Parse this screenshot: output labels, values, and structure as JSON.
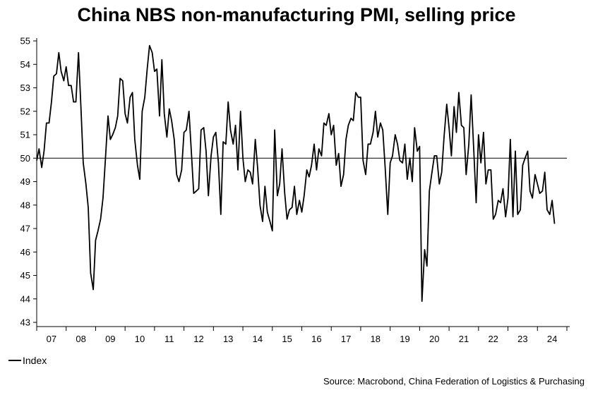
{
  "chart_data": {
    "type": "line",
    "title": "China NBS non-manufacturing PMI, selling price",
    "xlabel": "",
    "ylabel": "",
    "ylim": [
      43,
      55
    ],
    "xlim": [
      2007.0,
      2025.0
    ],
    "yticks": [
      43,
      44,
      45,
      46,
      47,
      48,
      49,
      50,
      51,
      52,
      53,
      54,
      55
    ],
    "categories": [
      "07",
      "08",
      "09",
      "10",
      "11",
      "12",
      "13",
      "14",
      "15",
      "16",
      "17",
      "18",
      "19",
      "20",
      "21",
      "22",
      "23",
      "24"
    ],
    "reference_line": 50,
    "grid": false,
    "legend": "bottom-left",
    "series": [
      {
        "name": "Index",
        "color": "#000000",
        "x": [
          2007.0,
          2007.08,
          2007.17,
          2007.25,
          2007.33,
          2007.42,
          2007.5,
          2007.58,
          2007.67,
          2007.75,
          2007.83,
          2007.92,
          2008.0,
          2008.08,
          2008.17,
          2008.25,
          2008.33,
          2008.42,
          2008.5,
          2008.58,
          2008.67,
          2008.75,
          2008.83,
          2008.92,
          2009.0,
          2009.08,
          2009.17,
          2009.25,
          2009.33,
          2009.42,
          2009.5,
          2009.58,
          2009.67,
          2009.75,
          2009.83,
          2009.92,
          2010.0,
          2010.08,
          2010.17,
          2010.25,
          2010.33,
          2010.42,
          2010.5,
          2010.58,
          2010.67,
          2010.75,
          2010.83,
          2010.92,
          2011.0,
          2011.08,
          2011.17,
          2011.25,
          2011.33,
          2011.42,
          2011.5,
          2011.58,
          2011.67,
          2011.75,
          2011.83,
          2011.92,
          2012.0,
          2012.08,
          2012.17,
          2012.25,
          2012.33,
          2012.42,
          2012.5,
          2012.58,
          2012.67,
          2012.75,
          2012.83,
          2012.92,
          2013.0,
          2013.08,
          2013.17,
          2013.25,
          2013.33,
          2013.42,
          2013.5,
          2013.58,
          2013.67,
          2013.75,
          2013.83,
          2013.92,
          2014.0,
          2014.08,
          2014.17,
          2014.25,
          2014.33,
          2014.42,
          2014.5,
          2014.58,
          2014.67,
          2014.75,
          2014.83,
          2014.92,
          2015.0,
          2015.08,
          2015.17,
          2015.25,
          2015.33,
          2015.42,
          2015.5,
          2015.58,
          2015.67,
          2015.75,
          2015.83,
          2015.92,
          2016.0,
          2016.08,
          2016.17,
          2016.25,
          2016.33,
          2016.42,
          2016.5,
          2016.58,
          2016.67,
          2016.75,
          2016.83,
          2016.92,
          2017.0,
          2017.08,
          2017.17,
          2017.25,
          2017.33,
          2017.42,
          2017.5,
          2017.58,
          2017.67,
          2017.75,
          2017.83,
          2017.92,
          2018.0,
          2018.08,
          2018.17,
          2018.25,
          2018.33,
          2018.42,
          2018.5,
          2018.58,
          2018.67,
          2018.75,
          2018.83,
          2018.92,
          2019.0,
          2019.08,
          2019.17,
          2019.25,
          2019.33,
          2019.42,
          2019.5,
          2019.58,
          2019.67,
          2019.75,
          2019.83,
          2019.92,
          2020.0,
          2020.08,
          2020.17,
          2020.25,
          2020.33,
          2020.42,
          2020.5,
          2020.58,
          2020.67,
          2020.75,
          2020.83,
          2020.92,
          2021.0,
          2021.08,
          2021.17,
          2021.25,
          2021.33,
          2021.42,
          2021.5,
          2021.58,
          2021.67,
          2021.75,
          2021.83,
          2021.92,
          2022.0,
          2022.08,
          2022.17,
          2022.25,
          2022.33,
          2022.42,
          2022.5,
          2022.58,
          2022.67,
          2022.75,
          2022.83,
          2022.92,
          2023.0,
          2023.08,
          2023.17,
          2023.25,
          2023.33,
          2023.42,
          2023.5,
          2023.58,
          2023.67,
          2023.75,
          2023.83,
          2023.92,
          2024.0,
          2024.08,
          2024.17,
          2024.25,
          2024.33,
          2024.42,
          2024.5,
          2024.58
        ],
        "values": [
          49.9,
          50.4,
          49.6,
          50.3,
          51.5,
          51.5,
          52.4,
          53.5,
          53.6,
          54.5,
          53.7,
          53.3,
          53.9,
          53.1,
          53.1,
          52.4,
          52.4,
          54.5,
          52.2,
          49.8,
          48.9,
          47.9,
          45.1,
          44.4,
          46.5,
          46.9,
          47.4,
          48.3,
          49.9,
          51.8,
          50.8,
          51.0,
          51.3,
          51.8,
          53.4,
          53.3,
          51.9,
          51.5,
          52.6,
          52.8,
          50.8,
          49.7,
          49.1,
          52.0,
          52.6,
          53.8,
          54.8,
          54.5,
          53.7,
          53.8,
          51.8,
          54.2,
          51.9,
          50.9,
          52.1,
          51.6,
          50.8,
          49.3,
          49.0,
          49.5,
          51.1,
          51.2,
          52.0,
          50.3,
          48.5,
          48.6,
          48.7,
          51.2,
          51.3,
          50.3,
          48.4,
          50.1,
          50.9,
          51.1,
          49.8,
          47.6,
          50.7,
          50.6,
          52.4,
          51.2,
          50.6,
          51.4,
          49.5,
          52.0,
          50.0,
          49.0,
          49.5,
          49.4,
          48.9,
          50.8,
          49.6,
          48.0,
          47.3,
          48.8,
          47.7,
          47.3,
          46.9,
          51.2,
          48.4,
          48.9,
          50.4,
          48.5,
          47.4,
          47.8,
          47.9,
          48.8,
          47.6,
          48.2,
          47.7,
          48.4,
          49.5,
          49.2,
          49.7,
          50.6,
          49.5,
          50.4,
          50.1,
          51.5,
          51.4,
          51.9,
          51.0,
          51.4,
          49.7,
          50.2,
          48.8,
          49.3,
          50.8,
          51.4,
          51.7,
          51.6,
          52.8,
          52.6,
          52.6,
          49.9,
          49.3,
          50.6,
          50.6,
          51.1,
          52.0,
          50.9,
          51.5,
          51.2,
          49.6,
          47.6,
          49.8,
          50.1,
          51.0,
          50.6,
          49.9,
          49.8,
          50.6,
          49.1,
          50.0,
          49.0,
          51.3,
          50.3,
          50.5,
          43.9,
          46.1,
          45.4,
          48.6,
          49.4,
          50.1,
          50.1,
          48.9,
          49.4,
          50.9,
          52.3,
          51.3,
          50.1,
          52.2,
          51.1,
          52.8,
          51.4,
          51.3,
          49.3,
          50.6,
          52.7,
          50.6,
          48.1,
          51.0,
          49.8,
          51.1,
          48.9,
          49.5,
          49.5,
          47.4,
          47.6,
          48.2,
          48.1,
          48.7,
          47.5,
          48.3,
          50.8,
          47.5,
          50.3,
          47.6,
          47.8,
          49.7,
          50.0,
          50.3,
          48.6,
          48.3,
          49.3,
          48.9,
          48.5,
          48.6,
          49.4,
          47.8,
          47.6,
          48.2,
          47.2
        ]
      }
    ]
  },
  "legend_label": "Index",
  "source": "Source: Macrobond, China Federation of Logistics & Purchasing"
}
